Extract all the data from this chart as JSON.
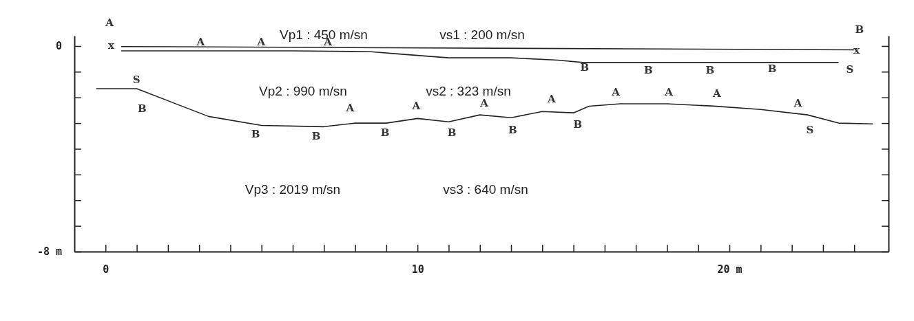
{
  "chart_data": {
    "type": "line",
    "xlim": [
      -1,
      25.1
    ],
    "ylim": [
      -8,
      0.4
    ],
    "xticks": [
      {
        "value": 0,
        "label": "0"
      },
      {
        "value": 1,
        "label": null
      },
      {
        "value": 2,
        "label": null
      },
      {
        "value": 3,
        "label": null
      },
      {
        "value": 4,
        "label": null
      },
      {
        "value": 5,
        "label": null
      },
      {
        "value": 6,
        "label": null
      },
      {
        "value": 7,
        "label": null
      },
      {
        "value": 8,
        "label": null
      },
      {
        "value": 9,
        "label": null
      },
      {
        "value": 10,
        "label": "10"
      },
      {
        "value": 11,
        "label": null
      },
      {
        "value": 12,
        "label": null
      },
      {
        "value": 13,
        "label": null
      },
      {
        "value": 14,
        "label": null
      },
      {
        "value": 15,
        "label": null
      },
      {
        "value": 16,
        "label": null
      },
      {
        "value": 17,
        "label": null
      },
      {
        "value": 18,
        "label": null
      },
      {
        "value": 19,
        "label": null
      },
      {
        "value": 20,
        "label": "20 m"
      },
      {
        "value": 21,
        "label": null
      },
      {
        "value": 22,
        "label": null
      },
      {
        "value": 23,
        "label": null
      },
      {
        "value": 24,
        "label": null
      }
    ],
    "yticks": [
      {
        "value": 0,
        "label": "0"
      },
      {
        "value": -1,
        "label": null
      },
      {
        "value": -2,
        "label": null
      },
      {
        "value": -3,
        "label": null
      },
      {
        "value": -4,
        "label": null
      },
      {
        "value": -5,
        "label": null
      },
      {
        "value": -6,
        "label": null
      },
      {
        "value": -7,
        "label": null
      },
      {
        "value": -8,
        "label": "-8 m"
      }
    ],
    "marker": "none",
    "line_style": "solid",
    "grid": false,
    "series": [
      {
        "color": "#222222",
        "x": [
          0.5,
          24.0
        ],
        "values": [
          -0.02,
          -0.15
        ]
      },
      {
        "color": "#222222",
        "x": [
          0.5,
          6.0,
          8.5,
          9.5,
          11.0,
          13.0,
          14.5,
          15.3,
          23.5
        ],
        "values": [
          -0.19,
          -0.19,
          -0.22,
          -0.32,
          -0.46,
          -0.46,
          -0.55,
          -0.64,
          -0.64
        ]
      },
      {
        "color": "#222222",
        "x": [
          -0.3,
          1.0,
          3.3,
          5.0,
          7.0,
          8.0,
          9.0,
          10.0,
          11.0,
          12.0,
          13.0,
          14.0,
          15.0,
          15.5,
          16.5,
          18.0,
          19.5,
          21.0,
          22.5,
          23.5,
          24.6
        ],
        "values": [
          -1.66,
          -1.66,
          -2.74,
          -3.09,
          -3.14,
          -3.0,
          -3.0,
          -2.82,
          -2.95,
          -2.68,
          -2.79,
          -2.55,
          -2.6,
          -2.34,
          -2.25,
          -2.25,
          -2.34,
          -2.47,
          -2.68,
          -3.0,
          -3.03
        ]
      }
    ],
    "annotations": [
      "A",
      "B",
      "Vp1 : 450 m/sn",
      "vs1 : 200 m/sn",
      "Vp2 : 990 m/sn",
      "vs2 : 323 m/sn",
      "Vp3 : 2019 m/sn",
      "vs3 : 640 m/sn",
      "x",
      "A",
      "A",
      "A",
      "B",
      "B",
      "B",
      "B",
      "S",
      "x",
      "S",
      "B",
      "B",
      "B",
      "A",
      "B",
      "A",
      "B",
      "A",
      "B",
      "A",
      "B",
      "A",
      "A",
      "A",
      "A",
      "S"
    ]
  }
}
